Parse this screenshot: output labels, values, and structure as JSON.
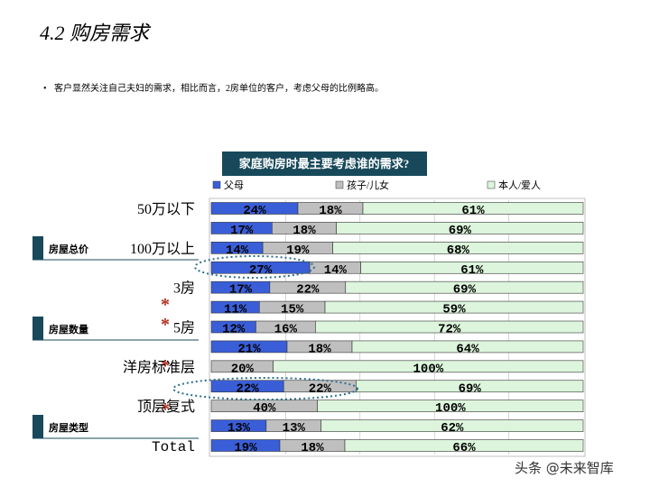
{
  "header": {
    "title": "4.2 购房需求",
    "bullet": "客户显然关注自己夫妇的需求，相比而言，2房单位的客户，考虑父母的比例略高。"
  },
  "side_labels": [
    "房屋总价",
    "房屋数量",
    "房屋类型"
  ],
  "annotations": [
    "*",
    "*",
    "*",
    "*"
  ],
  "watermark": "头条 @未来智库",
  "chart_data": {
    "type": "stacked-bar-100",
    "title": "家庭购房时最主要考虑谁的需求?",
    "categories": [
      "50万以下",
      null,
      "100万以上",
      null,
      "3房",
      null,
      "5房",
      null,
      "洋房标准层",
      null,
      "顶层复式",
      null,
      "Total"
    ],
    "series": [
      {
        "name": "父母",
        "color": "#3a5ed8",
        "values": [
          24,
          17,
          14,
          27,
          17,
          11,
          12,
          21,
          null,
          22,
          null,
          13,
          19
        ],
        "value_labels": [
          "24%",
          "17%",
          "14%",
          "27%",
          "17%",
          "11%",
          "12%",
          "21%",
          null,
          "22%",
          null,
          "13%",
          "19%"
        ]
      },
      {
        "name": "孩子/儿女",
        "color": "#bfbfbf",
        "values": [
          18,
          18,
          19,
          14,
          22,
          15,
          16,
          18,
          20,
          22,
          40,
          13,
          18
        ],
        "value_labels": [
          "18%",
          "18%",
          "19%",
          "14%",
          "22%",
          "15%",
          "16%",
          "18%",
          "20%",
          "22%",
          "40%",
          "13%",
          "18%"
        ]
      },
      {
        "name": "本人/爱人",
        "color": "#dcf5dc",
        "values": [
          61,
          69,
          68,
          61,
          69,
          59,
          72,
          64,
          100,
          69,
          100,
          62,
          66
        ],
        "value_labels": [
          "61%",
          "69%",
          "68%",
          "61%",
          "69%",
          "59%",
          "72%",
          "64%",
          "100%",
          "69%",
          "100%",
          "62%",
          "66%"
        ]
      }
    ]
  }
}
